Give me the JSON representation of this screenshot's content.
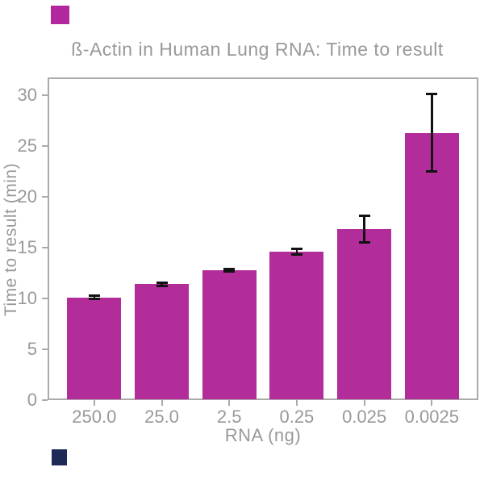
{
  "corner_markers": {
    "top_left_color": "#b2279d",
    "bottom_left_color": "#1c2a55"
  },
  "chart_data": {
    "type": "bar",
    "title": "ß-Actin in Human Lung RNA: Time to result",
    "xlabel": "RNA (ng)",
    "ylabel": "Time to result (min)",
    "categories": [
      "250.0",
      "25.0",
      "2.5",
      "0.25",
      "0.025",
      "0.0025"
    ],
    "values": [
      10.1,
      11.4,
      12.8,
      14.6,
      16.8,
      26.3
    ],
    "errors": [
      0.15,
      0.15,
      0.1,
      0.3,
      1.3,
      3.8
    ],
    "y_ticks": [
      0,
      5,
      10,
      15,
      20,
      25,
      30
    ],
    "ylim": [
      0,
      31.75
    ],
    "grid": false,
    "legend": null,
    "bar_color": "#b22d9a",
    "error_bar_color": "#111111",
    "axis_color": "#ababab",
    "text_color": "#999999"
  }
}
